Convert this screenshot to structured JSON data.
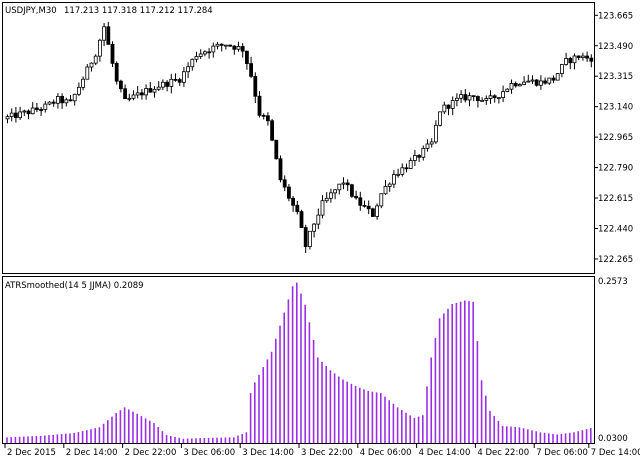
{
  "chart_data": [
    {
      "type": "candlestick",
      "symbol_title": "USDJPY,M30",
      "ohlc_title": "117.213 117.318 117.212 117.284",
      "price_range": [
        122.19,
        123.73
      ],
      "y_ticks": [
        "123.665",
        "123.490",
        "123.315",
        "123.140",
        "122.965",
        "122.790",
        "122.615",
        "122.440",
        "122.265"
      ],
      "tick_values": [
        123.665,
        123.49,
        123.315,
        123.14,
        122.965,
        122.79,
        122.615,
        122.44,
        122.265
      ],
      "colors": {
        "up": "#ffffff",
        "down": "#000000",
        "outline": "#000000"
      },
      "anchors": [
        [
          0,
          123.07
        ],
        [
          6,
          123.11
        ],
        [
          10,
          123.14
        ],
        [
          13,
          123.18
        ],
        [
          16,
          123.16
        ],
        [
          20,
          123.35
        ],
        [
          22,
          123.45
        ],
        [
          24,
          123.6
        ],
        [
          27,
          123.28
        ],
        [
          29,
          123.17
        ],
        [
          33,
          123.22
        ],
        [
          37,
          123.26
        ],
        [
          42,
          123.3
        ],
        [
          46,
          123.44
        ],
        [
          50,
          123.48
        ],
        [
          53,
          123.5
        ],
        [
          57,
          123.47
        ],
        [
          59,
          123.32
        ],
        [
          61,
          123.1
        ],
        [
          63,
          123.05
        ],
        [
          66,
          122.72
        ],
        [
          70,
          122.52
        ],
        [
          72,
          122.34
        ],
        [
          74,
          122.47
        ],
        [
          76,
          122.58
        ],
        [
          79,
          122.66
        ],
        [
          81,
          122.71
        ],
        [
          84,
          122.6
        ],
        [
          88,
          122.52
        ],
        [
          90,
          122.64
        ],
        [
          93,
          122.75
        ],
        [
          96,
          122.8
        ],
        [
          99,
          122.86
        ],
        [
          102,
          122.93
        ],
        [
          104,
          123.12
        ],
        [
          106,
          123.15
        ],
        [
          109,
          123.19
        ],
        [
          112,
          123.2
        ],
        [
          115,
          123.17
        ],
        [
          118,
          123.21
        ],
        [
          121,
          123.27
        ],
        [
          124,
          123.29
        ],
        [
          128,
          123.28
        ],
        [
          131,
          123.3
        ],
        [
          134,
          123.4
        ],
        [
          137,
          123.43
        ],
        [
          139,
          123.42
        ]
      ]
    },
    {
      "type": "bar",
      "title": "ATRSmoothed(14 5 JJMA) 0.2089",
      "y_range": [
        0.03,
        0.2573
      ],
      "y_ticks": [
        "0.2573",
        "0.0300"
      ],
      "tick_values": [
        0.2573,
        0.03
      ],
      "color": "#9b30e6",
      "anchors": [
        [
          0,
          0.038
        ],
        [
          8,
          0.04
        ],
        [
          16,
          0.044
        ],
        [
          22,
          0.052
        ],
        [
          26,
          0.072
        ],
        [
          28,
          0.08
        ],
        [
          31,
          0.071
        ],
        [
          35,
          0.058
        ],
        [
          38,
          0.041
        ],
        [
          42,
          0.036
        ],
        [
          47,
          0.037
        ],
        [
          54,
          0.038
        ],
        [
          57,
          0.045
        ],
        [
          58,
          0.1
        ],
        [
          59,
          0.115
        ],
        [
          63,
          0.158
        ],
        [
          66,
          0.213
        ],
        [
          68,
          0.25
        ],
        [
          69,
          0.255
        ],
        [
          71,
          0.224
        ],
        [
          74,
          0.15
        ],
        [
          77,
          0.132
        ],
        [
          80,
          0.119
        ],
        [
          83,
          0.11
        ],
        [
          86,
          0.103
        ],
        [
          89,
          0.1
        ],
        [
          93,
          0.08
        ],
        [
          97,
          0.065
        ],
        [
          99,
          0.069
        ],
        [
          101,
          0.15
        ],
        [
          103,
          0.205
        ],
        [
          106,
          0.225
        ],
        [
          109,
          0.23
        ],
        [
          111,
          0.228
        ],
        [
          113,
          0.118
        ],
        [
          115,
          0.075
        ],
        [
          118,
          0.054
        ],
        [
          122,
          0.052
        ],
        [
          127,
          0.045
        ],
        [
          131,
          0.042
        ],
        [
          135,
          0.045
        ],
        [
          139,
          0.051
        ]
      ]
    }
  ],
  "x_axis": {
    "labels": [
      "2 Dec 2015",
      "2 Dec 14:00",
      "2 Dec 22:00",
      "3 Dec 06:00",
      "3 Dec 14:00",
      "3 Dec 22:00",
      "4 Dec 06:00",
      "4 Dec 14:00",
      "4 Dec 22:00",
      "7 Dec 06:00",
      "7 Dec 14:00"
    ]
  }
}
